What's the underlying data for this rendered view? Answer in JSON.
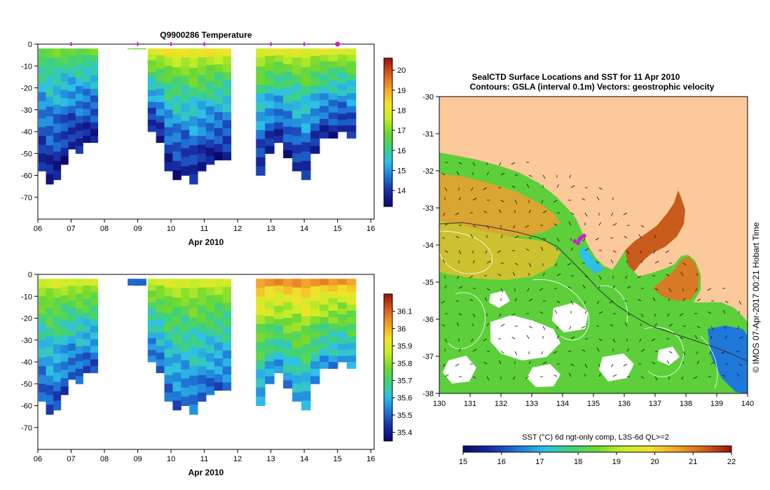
{
  "colors": {
    "temp_scale": [
      "#0a0a6e",
      "#1a2fa8",
      "#1f78d8",
      "#2ec0e8",
      "#3fd27a",
      "#6fd830",
      "#c8ee28",
      "#f2e22a",
      "#f2a22a",
      "#d86020",
      "#a0180c"
    ],
    "sal_scale": [
      "#0a0a6e",
      "#1a2fa8",
      "#1f78d8",
      "#2ec0e8",
      "#3fd27a",
      "#6fd830",
      "#c8ee28",
      "#f2e22a",
      "#f2a22a",
      "#d86020",
      "#a0180c"
    ],
    "land": "#fbc99a",
    "marker": "#cc22cc"
  },
  "chart_data": [
    {
      "type": "heatmap",
      "name": "temperature-section",
      "title": "Q9900286  Temperature",
      "xlabel": "Apr 2010",
      "ylabel": "",
      "x_ticks": [
        "06",
        "07",
        "08",
        "09",
        "10",
        "11",
        "12",
        "13",
        "14",
        "15",
        "16"
      ],
      "y_ticks": [
        "0",
        "-10",
        "-20",
        "-30",
        "-40",
        "-50",
        "-60",
        "-70"
      ],
      "xlim": [
        6,
        16.1
      ],
      "ylim": [
        -80,
        0
      ],
      "colorbar": {
        "min": 13.2,
        "max": 20.6,
        "ticks": [
          "14",
          "15",
          "16",
          "17",
          "18",
          "19",
          "20"
        ],
        "tick_values": [
          14,
          15,
          16,
          17,
          18,
          19,
          20
        ]
      },
      "profile_markers_day": [
        7.0,
        9.0,
        10.0,
        11.0,
        13.0,
        14.0,
        15.0
      ],
      "groups": [
        {
          "start": 6.02,
          "end": 7.8,
          "top": -2,
          "bottom_profile": [
            -58,
            -64,
            -62,
            -55,
            -48,
            -50,
            -45,
            -45
          ],
          "surface": 16.8,
          "deep": 13.6
        },
        {
          "start": 8.7,
          "end": 9.25,
          "top": -2,
          "bottom_profile": [
            -2,
            -2,
            -2
          ],
          "surface": 16.9,
          "deep": 16.9
        },
        {
          "start": 9.3,
          "end": 11.8,
          "top": -2,
          "bottom_profile": [
            -40,
            -45,
            -58,
            -62,
            -60,
            -64,
            -58,
            -55,
            -53,
            -53
          ],
          "surface": 18.2,
          "deep": 13.6
        },
        {
          "start": 12.55,
          "end": 15.55,
          "top": -2,
          "bottom_profile": [
            -60,
            -50,
            -45,
            -52,
            -58,
            -62,
            -50,
            -43,
            -43,
            -40,
            -43
          ],
          "surface": 18.0,
          "deep": 13.7
        }
      ]
    },
    {
      "type": "heatmap",
      "name": "salinity-section",
      "title": "",
      "xlabel": "Apr 2010",
      "ylabel": "",
      "x_ticks": [
        "06",
        "07",
        "08",
        "09",
        "10",
        "11",
        "12",
        "13",
        "14",
        "15",
        "16"
      ],
      "y_ticks": [
        "0",
        "-10",
        "-20",
        "-30",
        "-40",
        "-50",
        "-60",
        "-70"
      ],
      "xlim": [
        6,
        16.1
      ],
      "ylim": [
        -80,
        0
      ],
      "colorbar": {
        "min": 35.35,
        "max": 36.2,
        "ticks": [
          "35.4",
          "35.5",
          "35.6",
          "35.7",
          "35.8",
          "35.9",
          "36",
          "36.1"
        ],
        "tick_values": [
          35.4,
          35.5,
          35.6,
          35.7,
          35.8,
          35.9,
          36.0,
          36.1
        ]
      },
      "groups": [
        {
          "start": 6.02,
          "end": 7.8,
          "top": -2,
          "bottom_profile": [
            -58,
            -64,
            -62,
            -55,
            -48,
            -50,
            -45,
            -45
          ],
          "surface": 35.88,
          "deep": 35.47
        },
        {
          "start": 8.7,
          "end": 9.25,
          "top": -2,
          "bottom_profile": [
            -5,
            -5,
            -5
          ],
          "surface": 35.5,
          "deep": 35.5
        },
        {
          "start": 9.3,
          "end": 11.8,
          "top": -2,
          "bottom_profile": [
            -40,
            -45,
            -58,
            -62,
            -60,
            -64,
            -58,
            -55,
            -53,
            -53
          ],
          "surface": 35.88,
          "deep": 35.5
        },
        {
          "start": 12.55,
          "end": 15.55,
          "top": -2,
          "bottom_profile": [
            -60,
            -50,
            -45,
            -52,
            -58,
            -62,
            -50,
            -43,
            -43,
            -40,
            -43
          ],
          "surface": 36.05,
          "deep": 35.55
        }
      ]
    },
    {
      "type": "heatmap",
      "name": "sst-map",
      "title": "SealCTD Surface Locations and SST for 11 Apr 2010",
      "subtitle": "Contours: GSLA (interval 0.1m) Vectors: geostrophic velocity",
      "x_ticks": [
        "130",
        "131",
        "132",
        "133",
        "134",
        "135",
        "136",
        "137",
        "138",
        "139",
        "140"
      ],
      "y_ticks": [
        "-30",
        "-31",
        "-32",
        "-33",
        "-34",
        "-35",
        "-36",
        "-37",
        "-38"
      ],
      "xlim": [
        130,
        140
      ],
      "ylim": [
        -38,
        -30
      ],
      "colorbar_label": "SST (°C) 6d ngt-only comp, L3S-6d QL>=2",
      "colorbar": {
        "min": 15,
        "max": 22,
        "ticks": [
          "15",
          "16",
          "17",
          "18",
          "19",
          "20",
          "21",
          "22"
        ],
        "tick_values": [
          15,
          16,
          17,
          18,
          19,
          20,
          21,
          22
        ]
      },
      "seal_positions": [
        [
          134.4,
          -33.9
        ],
        [
          134.6,
          -33.8
        ],
        [
          134.7,
          -33.75
        ],
        [
          134.5,
          -33.95
        ],
        [
          134.55,
          -33.85
        ]
      ],
      "credit": "© IMOS 07-Apr-2017 00:21 Hobart Time"
    }
  ]
}
